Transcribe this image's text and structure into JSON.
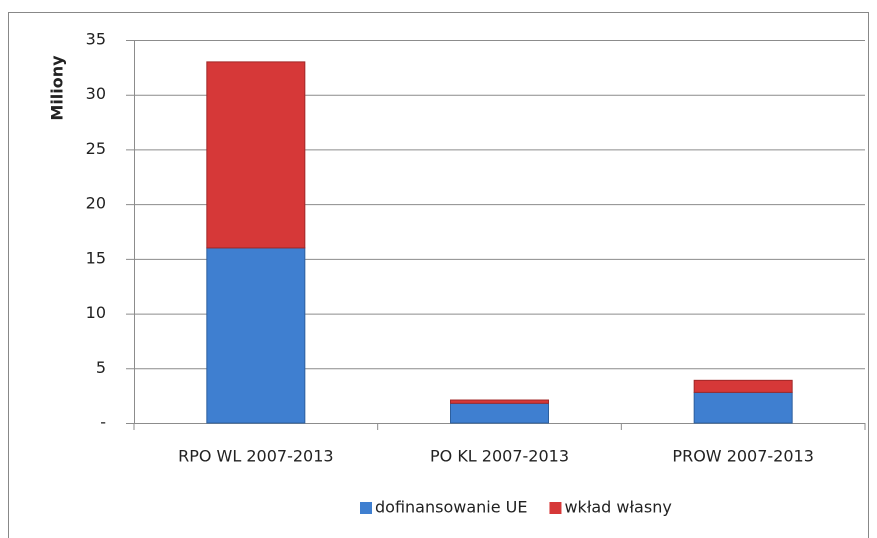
{
  "chart_data": {
    "type": "stacked_bar",
    "y_label": "Miliony",
    "categories": [
      "RPO WL 2007-2013",
      "PO KL 2007-2013",
      "PROW 2007-2013"
    ],
    "series": [
      {
        "name": "dofinansowanie UE",
        "color": "#3f7fd0",
        "values": [
          16,
          1.8,
          2.8
        ]
      },
      {
        "name": "wkład własny",
        "color": "#d63838",
        "values": [
          17,
          0.3,
          1.1
        ]
      }
    ],
    "ylim": [
      0,
      35
    ],
    "yticks": [
      {
        "value": 0,
        "label": "-"
      },
      5,
      10,
      15,
      20,
      25,
      30,
      35
    ],
    "grid": true,
    "legend": "bottom"
  }
}
